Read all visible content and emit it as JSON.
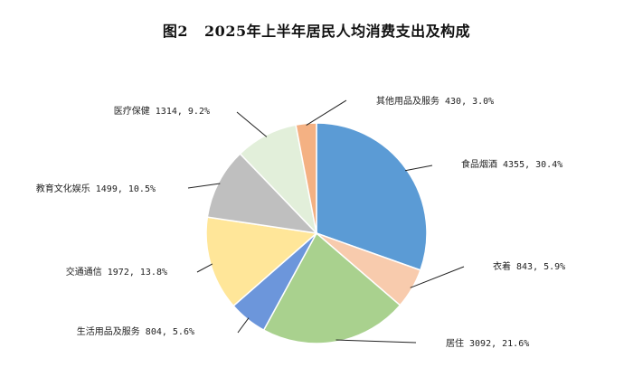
{
  "title": {
    "number": "图2",
    "text": "2025年上半年居民人均消费支出及构成"
  },
  "chart_data": {
    "type": "pie",
    "title": "2025年上半年居民人均消费支出及构成",
    "start_angle_deg": 0,
    "direction": "clockwise",
    "slices": [
      {
        "name": "食品烟酒",
        "value": 4355,
        "percent": "30.4%",
        "label": "食品烟酒 4355, 30.4%",
        "color": "#5B9BD5"
      },
      {
        "name": "衣着",
        "value": 843,
        "percent": "5.9%",
        "label": "衣着 843, 5.9%",
        "color": "#F8CBAD"
      },
      {
        "name": "居住",
        "value": 3092,
        "percent": "21.6%",
        "label": "居住 3092, 21.6%",
        "color": "#A9D18E"
      },
      {
        "name": "生活用品及服务",
        "value": 804,
        "percent": "5.6%",
        "label": "生活用品及服务 804, 5.6%",
        "color": "#6C96DB"
      },
      {
        "name": "交通通信",
        "value": 1972,
        "percent": "13.8%",
        "label": "交通通信 1972, 13.8%",
        "color": "#FFE699"
      },
      {
        "name": "教育文化娱乐",
        "value": 1499,
        "percent": "10.5%",
        "label": "教育文化娱乐 1499, 10.5%",
        "color": "#BFBFBF"
      },
      {
        "name": "医疗保健",
        "value": 1314,
        "percent": "9.2%",
        "label": "医疗保健 1314, 9.2%",
        "color": "#E2EFDA"
      },
      {
        "name": "其他用品及服务",
        "value": 430,
        "percent": "3.0%",
        "label": "其他用品及服务 430, 3.0%",
        "color": "#F4B183"
      }
    ]
  }
}
